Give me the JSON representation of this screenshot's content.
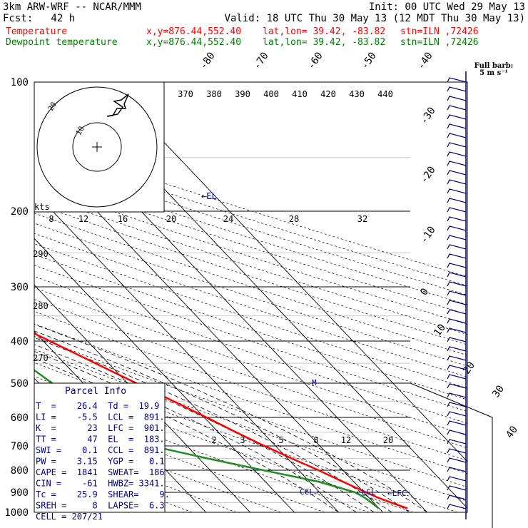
{
  "header": {
    "model": "3km ARW-WRF -- NCAR/MMM",
    "init": "Init: 00 UTC Wed 29 May 13",
    "fcst": "Fcst:   42 h",
    "valid": "Valid: 18 UTC Thu 30 May 13 (12 MDT Thu 30 May 13)"
  },
  "legend": [
    {
      "name": "Temperature",
      "xy": "x,y=876.44,552.40",
      "latlon": "lat,lon= 39.42, -83.82",
      "stn": "stn=ILN ,72426",
      "color": "#ff0000"
    },
    {
      "name": "Dewpoint temperature",
      "xy": "x,y=876.44,552.40",
      "latlon": "lat,lon= 39.42, -83.82",
      "stn": "stn=ILN ,72426",
      "color": "#008000"
    }
  ],
  "colors": {
    "temperature": "#ff0000",
    "dewpoint": "#228b22",
    "labels": "#00008b",
    "grid": "#000000"
  },
  "barb_label": "Full barb:",
  "barb_unit": "5 m s⁻¹",
  "hodograph": {
    "units": "kts",
    "ring_labels": [
      "10",
      "20"
    ]
  },
  "parcel_info": {
    "title": "Parcel Info",
    "rows": [
      "T  =    26.4  Td =  19.9",
      "LI =    -5.5  LCL =  891.",
      "K  =      23  LFC =  901.",
      "TT =      47  EL  =  183.",
      "SWI =    0.1  CCL =  891.",
      "PW =    3.15  YGP =   0.1",
      "CAPE =  1841  SWEAT=  186",
      "CIN =    -61  HWBZ= 3341.",
      "Tc =    25.9  SHEAR=    9.",
      "SREH =     8  LAPSE=  6.3",
      "CELL = 207/21"
    ]
  },
  "level_markers": {
    "el": "←EL",
    "ccl": "CCL→",
    "lcl": "←LCL",
    "lfc": "←LFC",
    "m": "M"
  },
  "chart_data": {
    "type": "line",
    "diagram": "Skew-T log-P",
    "y_axis": {
      "label": "",
      "scale": "log",
      "range": [
        1000,
        100
      ],
      "ticks": [
        100,
        200,
        300,
        400,
        500,
        600,
        700,
        800,
        900,
        1000
      ]
    },
    "isotherm_labels": [
      "-80",
      "-70",
      "-60",
      "-50",
      "-40",
      "-30",
      "-20",
      "-10",
      "0",
      "10",
      "20",
      "30",
      "40"
    ],
    "theta_labels": [
      "370",
      "380",
      "390",
      "400",
      "410",
      "420",
      "430",
      "440"
    ],
    "dry_adiabat_labels": [
      "290",
      "280",
      "270"
    ],
    "hodo_speed_labels": [
      "8",
      "12",
      "16",
      "20",
      "24",
      "28",
      "32"
    ],
    "mixing_ratio_labels": [
      "2",
      "3",
      "5",
      "8",
      "12",
      "20"
    ],
    "series": [
      {
        "name": "Temperature",
        "p": [
          980,
          950,
          925,
          900,
          850,
          800,
          750,
          700,
          650,
          600,
          550,
          500,
          450,
          400,
          350,
          300,
          250,
          200,
          180,
          150,
          125,
          100
        ],
        "t": [
          26.4,
          24.0,
          22.0,
          20.5,
          17.5,
          14.5,
          11.0,
          7.5,
          4.0,
          0.5,
          -3.5,
          -8.0,
          -13.0,
          -18.5,
          -25.0,
          -33.0,
          -43.0,
          -56.0,
          -60.0,
          -58.0,
          -58.0,
          -62.0
        ]
      },
      {
        "name": "Dewpoint temperature",
        "p": [
          980,
          950,
          925,
          900,
          850,
          800,
          750,
          700,
          650,
          600,
          550,
          500,
          450,
          400,
          350,
          330,
          300,
          250,
          230,
          200,
          170,
          130,
          120,
          100
        ],
        "t": [
          19.9,
          19.5,
          19.0,
          18.0,
          12.0,
          2.0,
          -8.0,
          -18.0,
          -28.0,
          -32.0,
          -30.0,
          -27.0,
          -29.0,
          -33.0,
          -37.0,
          -36.0,
          -38.0,
          -52.0,
          -60.0,
          -68.0,
          -72.0,
          -80.0,
          -81.0,
          -77.0
        ]
      }
    ]
  }
}
